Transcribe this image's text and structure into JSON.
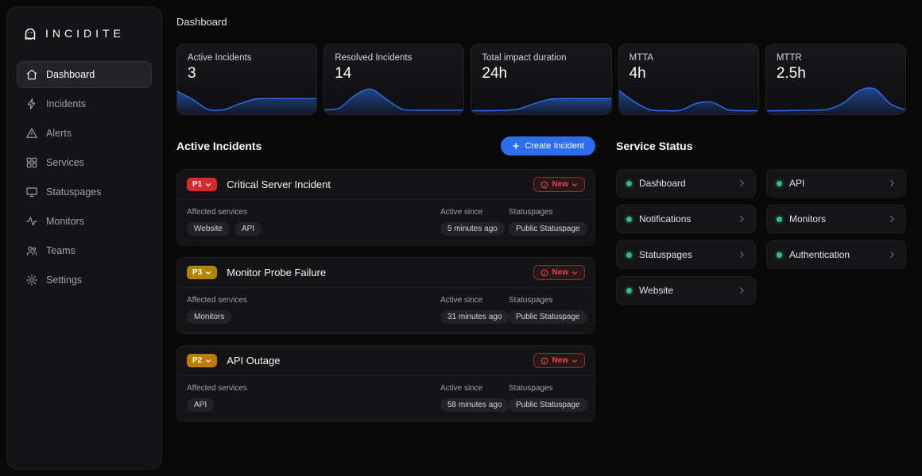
{
  "colors": {
    "accent_blue": "#2b6ff0",
    "green": "#2ebd85",
    "red": "#ef4444"
  },
  "sidebar": {
    "logo": "INCIDITE",
    "items": [
      {
        "label": "Dashboard",
        "icon": "home-icon",
        "active": true
      },
      {
        "label": "Incidents",
        "icon": "bolt-icon",
        "active": false
      },
      {
        "label": "Alerts",
        "icon": "warning-icon",
        "active": false
      },
      {
        "label": "Services",
        "icon": "grid-icon",
        "active": false
      },
      {
        "label": "Statuspages",
        "icon": "monitor-icon",
        "active": false
      },
      {
        "label": "Monitors",
        "icon": "pulse-icon",
        "active": false
      },
      {
        "label": "Teams",
        "icon": "people-icon",
        "active": false
      },
      {
        "label": "Settings",
        "icon": "gear-icon",
        "active": false
      }
    ]
  },
  "header": {
    "title": "Dashboard"
  },
  "stats": [
    {
      "label": "Active Incidents",
      "value": "3",
      "trend": [
        88,
        55,
        14,
        12,
        35,
        55,
        57,
        57,
        57,
        57
      ]
    },
    {
      "label": "Resolved Incidents",
      "value": "14",
      "trend": [
        12,
        18,
        70,
        96,
        55,
        15,
        10,
        10,
        10,
        10
      ]
    },
    {
      "label": "Total impact duration",
      "value": "24h",
      "trend": [
        8,
        8,
        9,
        14,
        35,
        54,
        57,
        57,
        57,
        57
      ]
    },
    {
      "label": "MTTA",
      "value": "4h",
      "trend": [
        92,
        45,
        12,
        8,
        10,
        38,
        42,
        12,
        8,
        8
      ]
    },
    {
      "label": "MTTR",
      "value": "2.5h",
      "trend": [
        8,
        8,
        9,
        10,
        14,
        40,
        90,
        96,
        35,
        10
      ]
    }
  ],
  "incidents_section": {
    "title": "Active Incidents",
    "create_button": "Create Incident",
    "labels": {
      "affected": "Affected services",
      "active_since": "Active since",
      "statuspages": "Statuspages"
    },
    "items": [
      {
        "priority": "P1",
        "priority_color": "#d22c2c",
        "title": "Critical Server Incident",
        "status": "New",
        "services": [
          "Website",
          "API"
        ],
        "active_since": "5 minutes ago",
        "statuspages": [
          "Public Statuspage"
        ]
      },
      {
        "priority": "P3",
        "priority_color": "#b08604",
        "title": "Monitor Probe Failure",
        "status": "New",
        "services": [
          "Monitors"
        ],
        "active_since": "31 minutes ago",
        "statuspages": [
          "Public Statuspage"
        ]
      },
      {
        "priority": "P2",
        "priority_color": "#bf7c00",
        "title": "API Outage",
        "status": "New",
        "services": [
          "API"
        ],
        "active_since": "58 minutes ago",
        "statuspages": [
          "Public Statuspage"
        ]
      }
    ]
  },
  "service_status": {
    "title": "Service Status",
    "services": [
      "Dashboard",
      "API",
      "Notifications",
      "Monitors",
      "Statuspages",
      "Authentication",
      "Website"
    ]
  }
}
